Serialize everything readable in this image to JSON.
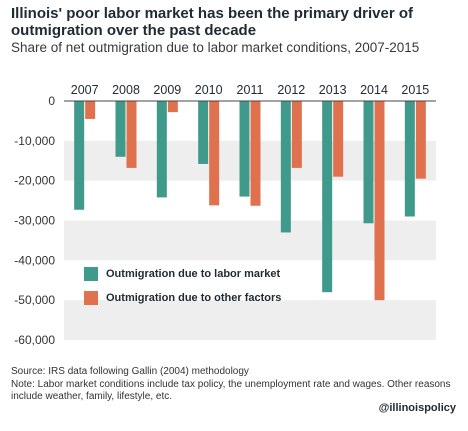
{
  "title": "Illinois' poor labor market has been the primary driver of outmigration over the past decade",
  "subtitle": "Share of net outmigration due to labor market conditions, 2007-2015",
  "source_text": "Source: IRS data following Gallin (2004) methodology",
  "note_text": "Note: Labor market conditions include tax policy, the unemployment rate and wages. Other reasons include weather, family, lifestyle, etc.",
  "handle": "@illinoispolicy",
  "colors": {
    "labor": "#3f9a8c",
    "other": "#e0714e",
    "band": "#eeeeee"
  },
  "chart_data": {
    "type": "bar",
    "categories": [
      "2007",
      "2008",
      "2009",
      "2010",
      "2011",
      "2012",
      "2013",
      "2014",
      "2015"
    ],
    "series": [
      {
        "name": "Outmigration due to labor market",
        "values": [
          -27300,
          -14000,
          -24200,
          -15800,
          -24000,
          -33000,
          -48000,
          -30700,
          -29000
        ]
      },
      {
        "name": "Outmigration due to other factors",
        "values": [
          -4500,
          -16800,
          -2800,
          -26200,
          -26300,
          -16800,
          -19000,
          -50000,
          -19500
        ]
      }
    ],
    "ylim": [
      -60000,
      0
    ],
    "yticks": [
      0,
      -10000,
      -20000,
      -30000,
      -40000,
      -50000,
      -60000
    ],
    "ytick_labels": [
      "0",
      "-10,000",
      "-20,000",
      "-30,000",
      "-40,000",
      "-50,000",
      "-60,000"
    ],
    "legend_position": "bottom-left",
    "grid": "alternating bands"
  }
}
